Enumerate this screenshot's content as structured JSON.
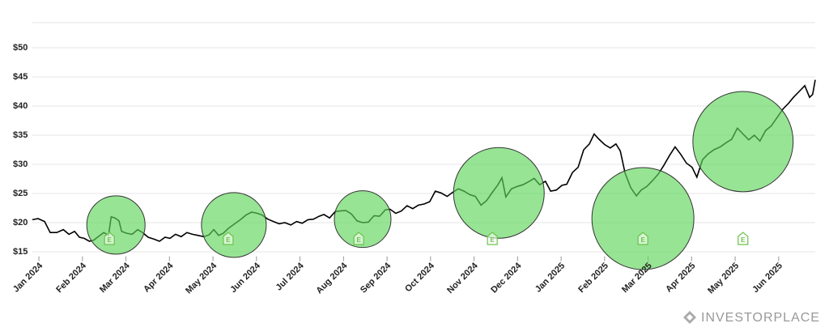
{
  "chart_data": {
    "type": "line",
    "xlim": [
      -0.15,
      17.84
    ],
    "ylim": [
      14.5,
      54.3
    ],
    "grid": true,
    "xticks": [
      {
        "value": 0,
        "label": "Jan 2024"
      },
      {
        "value": 1,
        "label": "Feb 2024"
      },
      {
        "value": 2,
        "label": "Mar 2024"
      },
      {
        "value": 3,
        "label": "Apr 2024"
      },
      {
        "value": 4,
        "label": "May 2024"
      },
      {
        "value": 5,
        "label": "Jun 2024"
      },
      {
        "value": 6,
        "label": "Jul 2024"
      },
      {
        "value": 7,
        "label": "Aug 2024"
      },
      {
        "value": 8,
        "label": "Sep 2024"
      },
      {
        "value": 9,
        "label": "Oct 2024"
      },
      {
        "value": 10,
        "label": "Nov 2024"
      },
      {
        "value": 11,
        "label": "Dec 2024"
      },
      {
        "value": 12,
        "label": "Jan 2025"
      },
      {
        "value": 13,
        "label": "Feb 2025"
      },
      {
        "value": 14,
        "label": "Mar 2025"
      },
      {
        "value": 15,
        "label": "Apr 2025"
      },
      {
        "value": 16,
        "label": "May 2025"
      },
      {
        "value": 17,
        "label": "Jun 2025"
      }
    ],
    "yticks": [
      {
        "value": 15,
        "label": "$15"
      },
      {
        "value": 20,
        "label": "$20"
      },
      {
        "value": 25,
        "label": "$25"
      },
      {
        "value": 30,
        "label": "$30"
      },
      {
        "value": 35,
        "label": "$35"
      },
      {
        "value": 40,
        "label": "$40"
      },
      {
        "value": 45,
        "label": "$45"
      },
      {
        "value": 50,
        "label": "$50"
      }
    ],
    "series": [
      {
        "color": "#000000",
        "x": [
          -0.15,
          -0.02,
          0.13,
          0.26,
          0.41,
          0.56,
          0.69,
          0.82,
          0.93,
          1.04,
          1.16,
          1.26,
          1.38,
          1.49,
          1.6,
          1.66,
          1.75,
          1.84,
          1.9,
          2.01,
          2.14,
          2.27,
          2.38,
          2.51,
          2.64,
          2.77,
          2.9,
          3.01,
          3.14,
          3.27,
          3.4,
          3.53,
          3.66,
          3.79,
          3.91,
          4.02,
          4.13,
          4.24,
          4.35,
          4.5,
          4.63,
          4.76,
          4.89,
          5.02,
          5.13,
          5.26,
          5.39,
          5.52,
          5.65,
          5.79,
          5.92,
          6.05,
          6.18,
          6.31,
          6.44,
          6.55,
          6.68,
          6.81,
          6.92,
          7.05,
          7.18,
          7.31,
          7.44,
          7.57,
          7.7,
          7.83,
          7.96,
          8.07,
          8.2,
          8.33,
          8.46,
          8.59,
          8.72,
          8.85,
          8.98,
          9.11,
          9.24,
          9.38,
          9.51,
          9.64,
          9.77,
          9.9,
          10.03,
          10.16,
          10.29,
          10.42,
          10.55,
          10.64,
          10.73,
          10.86,
          10.99,
          11.12,
          11.25,
          11.38,
          11.51,
          11.64,
          11.76,
          11.89,
          12.02,
          12.13,
          12.26,
          12.39,
          12.52,
          12.65,
          12.76,
          12.87,
          13.0,
          13.13,
          13.26,
          13.36,
          13.47,
          13.6,
          13.73,
          13.84,
          13.97,
          14.1,
          14.23,
          14.36,
          14.49,
          14.62,
          14.75,
          14.88,
          15.01,
          15.12,
          15.25,
          15.38,
          15.51,
          15.66,
          15.79,
          15.92,
          16.05,
          16.18,
          16.31,
          16.44,
          16.57,
          16.7,
          16.83,
          16.96,
          17.1,
          17.23,
          17.34,
          17.47,
          17.6,
          17.71,
          17.78,
          17.84
        ],
        "values": [
          20.5,
          20.7,
          20.2,
          18.3,
          18.3,
          18.8,
          18.0,
          18.5,
          17.5,
          17.3,
          16.8,
          17.0,
          17.7,
          18.3,
          17.8,
          21.0,
          20.8,
          20.3,
          18.5,
          18.2,
          18.0,
          18.8,
          18.3,
          17.5,
          17.2,
          16.8,
          17.5,
          17.3,
          18.0,
          17.6,
          18.3,
          18.0,
          17.8,
          17.6,
          17.9,
          18.8,
          17.8,
          18.2,
          19.0,
          19.8,
          20.5,
          21.3,
          21.8,
          21.6,
          21.3,
          20.6,
          20.2,
          19.8,
          20.0,
          19.6,
          20.2,
          19.9,
          20.5,
          20.6,
          21.1,
          21.4,
          20.8,
          21.9,
          22.0,
          22.1,
          21.5,
          20.3,
          20.0,
          20.1,
          21.2,
          21.1,
          22.2,
          22.3,
          21.6,
          22.0,
          22.9,
          22.4,
          23.0,
          23.2,
          23.6,
          25.4,
          25.1,
          24.5,
          25.2,
          25.8,
          25.4,
          24.8,
          24.5,
          23.0,
          23.8,
          25.2,
          26.5,
          27.7,
          24.4,
          25.8,
          26.2,
          26.5,
          27.0,
          27.6,
          26.5,
          27.1,
          25.4,
          25.6,
          26.4,
          26.6,
          28.6,
          29.5,
          32.5,
          33.5,
          35.2,
          34.3,
          33.4,
          32.8,
          33.5,
          32.3,
          28.5,
          26.0,
          24.6,
          25.6,
          26.2,
          27.2,
          28.3,
          29.8,
          31.5,
          33.0,
          31.7,
          30.2,
          29.5,
          27.8,
          30.8,
          31.8,
          32.5,
          33.0,
          33.7,
          34.3,
          36.2,
          35.2,
          34.2,
          35.0,
          34.0,
          35.8,
          36.6,
          38.0,
          39.5,
          40.5,
          41.5,
          42.5,
          43.5,
          41.5,
          42.0,
          44.5
        ]
      }
    ],
    "highlights": {
      "color": "#5fd65a",
      "x": [
        1.77,
        4.48,
        7.44,
        10.57,
        13.88,
        16.18
      ],
      "y": [
        19.6,
        19.6,
        20.6,
        25.1,
        20.7,
        33.9
      ],
      "size": [
        5.0,
        5.56,
        4.86,
        7.78,
        8.75,
        8.6
      ]
    },
    "earnings": {
      "color": "#6cc24a",
      "x": [
        1.62,
        4.35,
        7.35,
        10.42,
        13.88,
        16.18
      ],
      "labels": [
        "E",
        "E",
        "E",
        "E",
        "E",
        "E"
      ]
    },
    "watermark": "INVESTORPLACE"
  }
}
